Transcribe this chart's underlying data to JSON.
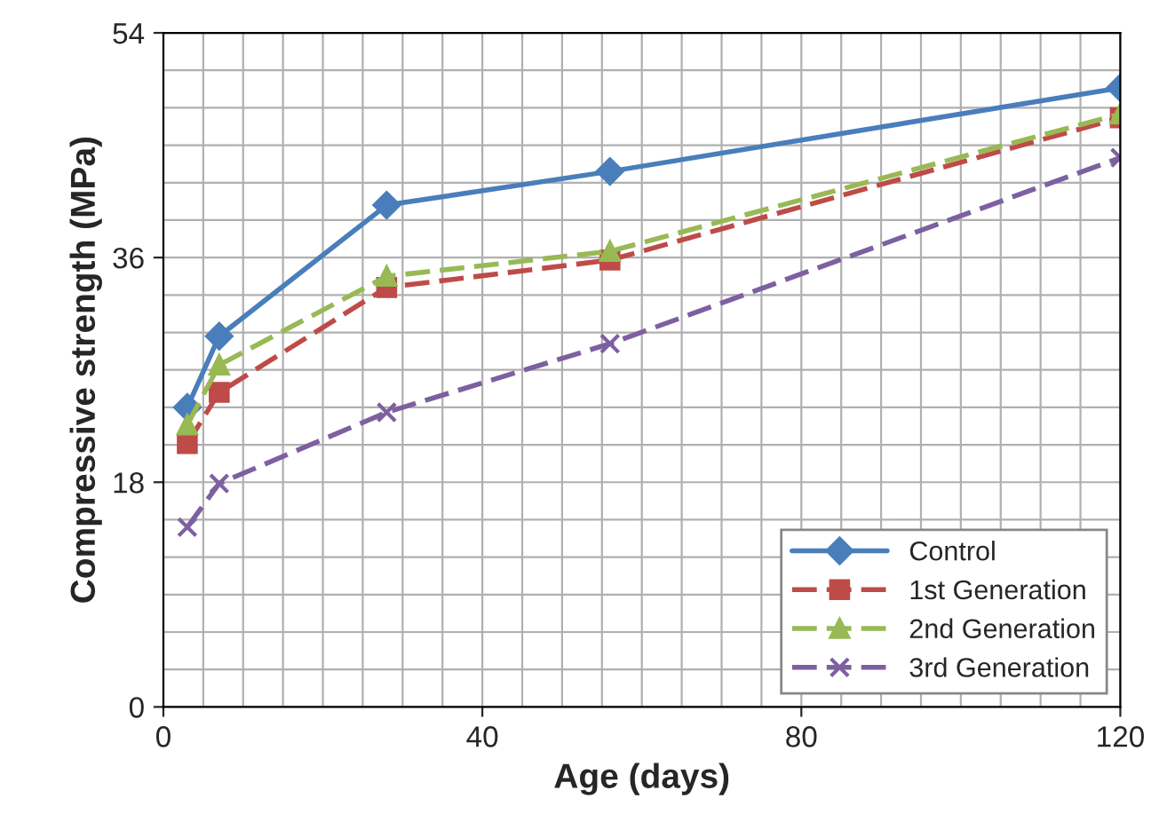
{
  "chart_data": {
    "type": "line",
    "xlabel": "Age (days)",
    "ylabel": "Compressive strength (MPa)",
    "x": [
      3,
      7,
      28,
      56,
      120
    ],
    "series": [
      {
        "name": "Control",
        "color": "#4a7ebb",
        "values": [
          24.0,
          29.7,
          40.2,
          42.9,
          49.6
        ],
        "marker": "diamond",
        "line_style": "solid"
      },
      {
        "name": "1st Generation",
        "color": "#be4b48",
        "values": [
          21.1,
          25.2,
          33.6,
          35.8,
          47.2
        ],
        "marker": "square",
        "line_style": "dashed"
      },
      {
        "name": "2nd Generation",
        "color": "#98b954",
        "values": [
          22.6,
          27.4,
          34.5,
          36.5,
          47.5
        ],
        "marker": "triangle",
        "line_style": "dashed"
      },
      {
        "name": "3rd Generation",
        "color": "#7d60a0",
        "values": [
          14.4,
          17.9,
          23.6,
          29.1,
          44.0
        ],
        "marker": "cross",
        "line_style": "dashed"
      }
    ],
    "xlim": [
      0,
      120
    ],
    "xticks": [
      0,
      40,
      80,
      120
    ],
    "ylim": [
      0,
      54
    ],
    "yticks": [
      0,
      18,
      36,
      54
    ],
    "grid": true,
    "legend": "bottom right"
  }
}
